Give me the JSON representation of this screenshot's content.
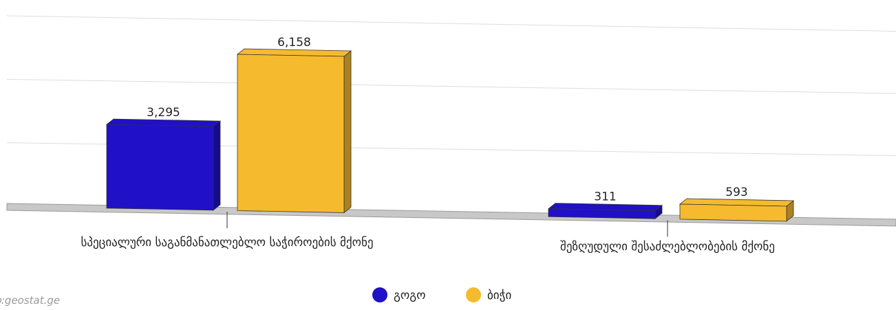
{
  "chart_data": {
    "type": "bar3d",
    "categories": [
      "სპეციალური საგანმანათლებლო საჭიროების მქონე",
      "შეზღუდული შესაძლებლობების მქონე"
    ],
    "series": [
      {
        "name": "გოგო",
        "color": "#2010c8",
        "values": [
          3295,
          311
        ],
        "value_labels": [
          "3,295",
          "311"
        ]
      },
      {
        "name": "ბიჭი",
        "color": "#f6ba2e",
        "values": [
          6158,
          593
        ],
        "value_labels": [
          "6,158",
          "593"
        ]
      }
    ],
    "ylim": [
      0,
      7500
    ],
    "yticks": [
      0,
      2500,
      5000,
      7500
    ],
    "grid": true,
    "legend": "bottom",
    "source": "წყარო:geostat.ge"
  }
}
